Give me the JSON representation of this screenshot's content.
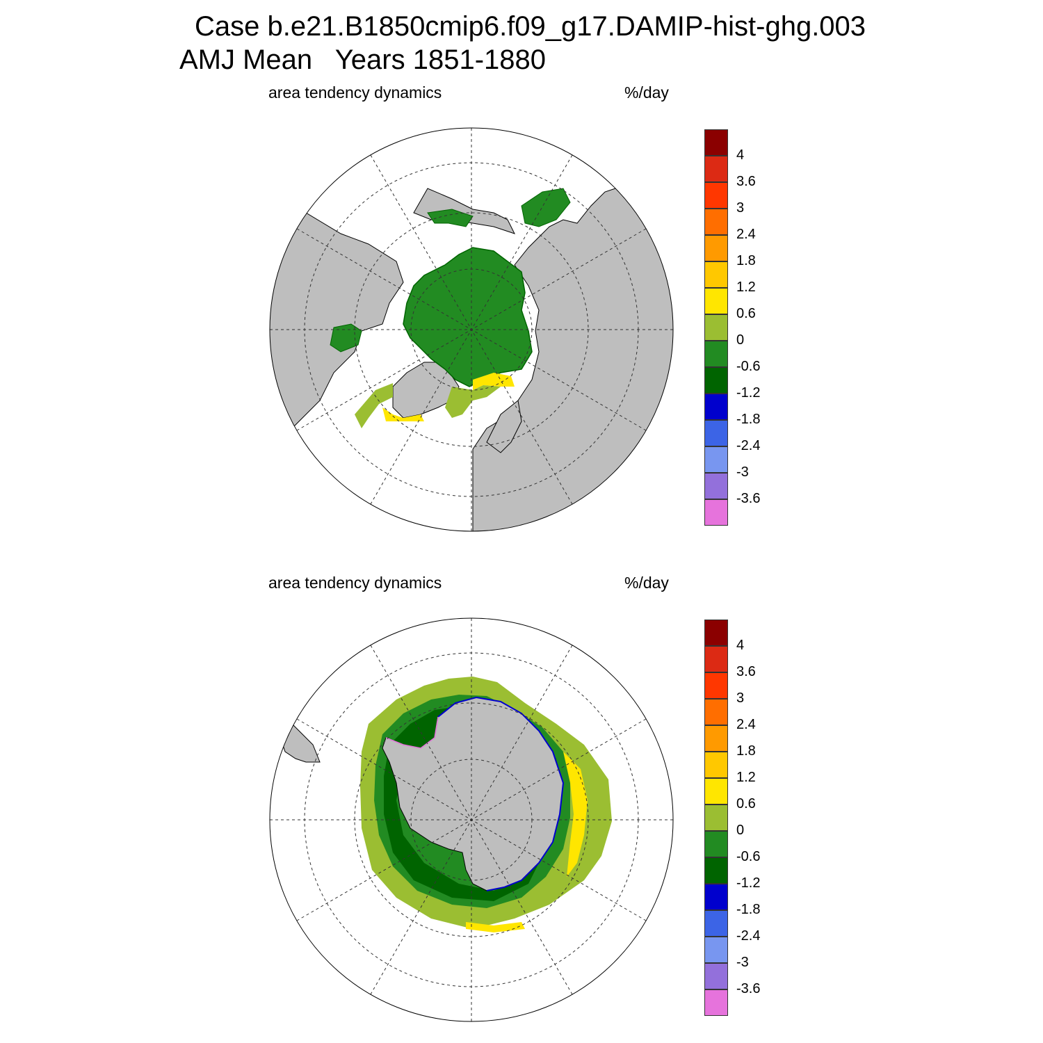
{
  "header": {
    "line1": "Case b.e21.B1850cmip6.f09_g17.DAMIP-hist-ghg.003",
    "line2": "AMJ Mean   Years 1851-1880"
  },
  "panels": [
    {
      "id": "north",
      "hemisphere": "Northern Hemisphere polar stereographic",
      "left_label": "area tendency dynamics",
      "right_label": "%/day"
    },
    {
      "id": "south",
      "hemisphere": "Southern Hemisphere polar stereographic",
      "left_label": "area tendency dynamics",
      "right_label": "%/day"
    }
  ],
  "colorbar": {
    "colors": [
      "#8b0000",
      "#dc2a14",
      "#ff3700",
      "#ff6e00",
      "#ff9a00",
      "#ffc800",
      "#ffe600",
      "#9bbe32",
      "#228b22",
      "#006400",
      "#0000cd",
      "#3c64e6",
      "#7896f0",
      "#9370db",
      "#e673dc"
    ],
    "labels": [
      "4",
      "3.6",
      "3",
      "2.4",
      "1.8",
      "1.2",
      "0.6",
      "0",
      "-0.6",
      "-1.2",
      "-1.8",
      "-2.4",
      "-3",
      "-3.6"
    ]
  },
  "colors": {
    "land": "#bebebe",
    "ocean": "#ffffff",
    "grid": "#333333"
  }
}
